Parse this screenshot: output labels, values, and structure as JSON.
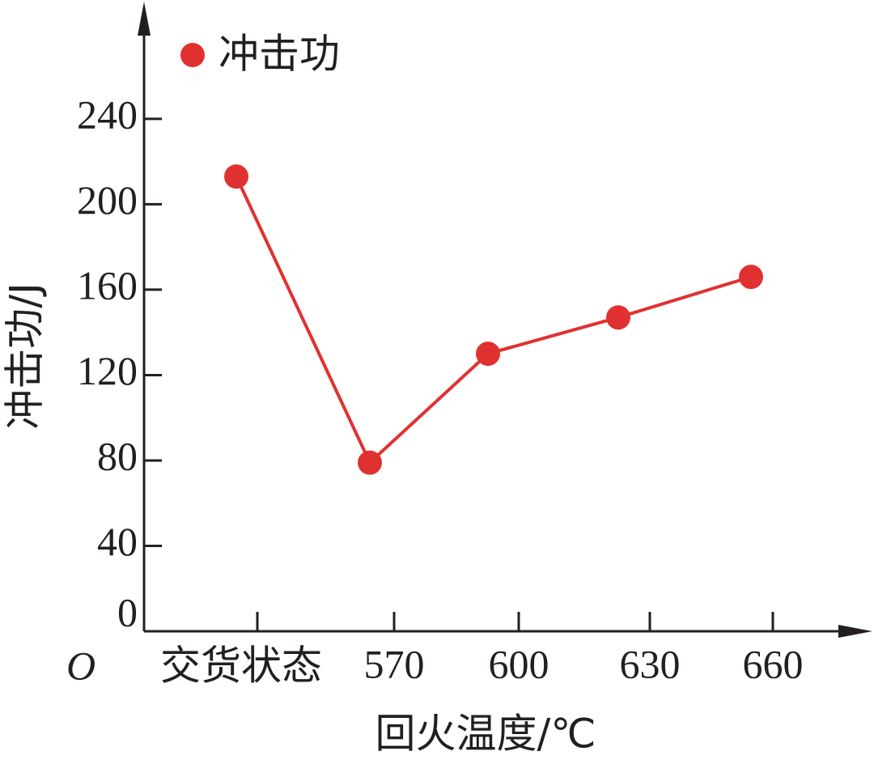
{
  "chart_data": {
    "type": "line",
    "x_label": "回火温度/℃",
    "y_label": "冲击功/J",
    "origin_label": "O",
    "categories": [
      "交货状态",
      "570",
      "600",
      "630",
      "660"
    ],
    "series": [
      {
        "name": "冲击功",
        "color": "#e03131",
        "values": [
          213,
          79,
          130,
          147,
          166
        ]
      }
    ],
    "ylim": [
      0,
      290
    ],
    "yticks": [
      0,
      40,
      80,
      120,
      160,
      200,
      240
    ],
    "legend": "upper left"
  }
}
